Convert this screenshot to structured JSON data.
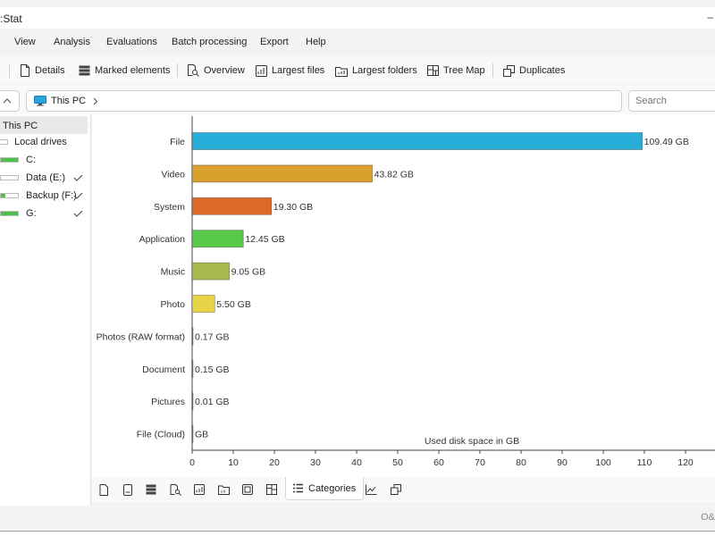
{
  "window": {
    "title": ":Stat",
    "title_right": "–"
  },
  "menu": [
    {
      "id": "view",
      "label": "View"
    },
    {
      "id": "analysis",
      "label": "Analysis"
    },
    {
      "id": "evaluations",
      "label": "Evaluations"
    },
    {
      "id": "batch",
      "label": "Batch processing"
    },
    {
      "id": "export",
      "label": "Export"
    },
    {
      "id": "help",
      "label": "Help"
    }
  ],
  "toolbar": {
    "details": "Details",
    "marked": "Marked elements",
    "overview": "Overview",
    "largest_files": "Largest files",
    "largest_folders": "Largest folders",
    "tree_map": "Tree Map",
    "duplicates": "Duplicates"
  },
  "address": {
    "location": "This PC",
    "search_placeholder": "Search"
  },
  "sidebar": {
    "root": "This PC",
    "local_drives": "Local drives",
    "drives": [
      {
        "label": "C:",
        "fill": 1.0,
        "checked": false
      },
      {
        "label": "Data (E:)",
        "fill": 0.0,
        "checked": true
      },
      {
        "label": "Backup (F:)",
        "fill": 0.25,
        "checked": true
      },
      {
        "label": "G:",
        "fill": 1.0,
        "checked": true
      }
    ]
  },
  "chart_data": {
    "type": "bar",
    "orientation": "horizontal",
    "categories": [
      "File",
      "Video",
      "System",
      "Application",
      "Music",
      "Photo",
      "Photos (RAW format)",
      "Document",
      "Pictures",
      "File (Cloud)"
    ],
    "values": [
      109.49,
      43.82,
      19.3,
      12.45,
      9.05,
      5.5,
      0.17,
      0.15,
      0.01,
      0
    ],
    "value_labels": [
      "109.49 GB",
      "43.82 GB",
      "19.30 GB",
      "12.45 GB",
      "9.05 GB",
      "5.50 GB",
      "0.17 GB",
      "0.15 GB",
      "0.01 GB",
      " GB"
    ],
    "colors": [
      "#27aed8",
      "#d9a02d",
      "#dc6a28",
      "#58c84b",
      "#a9b84c",
      "#e8d245",
      "#27aed8",
      "#27aed8",
      "#27aed8",
      "#27aed8"
    ],
    "xlabel": "Used disk space in GB",
    "xlim": [
      0,
      120
    ],
    "xticks": [
      0,
      10,
      20,
      30,
      40,
      50,
      60,
      70,
      80,
      90,
      100,
      110,
      120
    ],
    "grid": false
  },
  "bottom_tab": {
    "label": "Categories"
  },
  "status": {
    "watermark": "O&"
  }
}
